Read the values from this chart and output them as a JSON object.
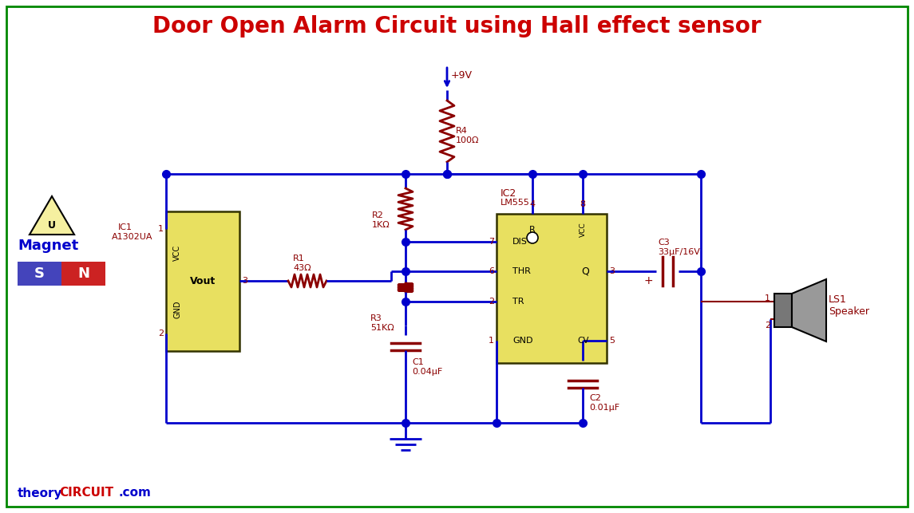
{
  "title": "Door Open Alarm Circuit using Hall effect sensor",
  "title_color": "#CC0000",
  "bg_color": "#FFFFFF",
  "wire_color": "#0000CC",
  "label_color": "#8B0000",
  "border_color": "#008800",
  "R1": "R1\n43Ω",
  "R2": "R2\n1KΩ",
  "R3": "R3\n51KΩ",
  "R4": "R4\n100Ω",
  "C1": "C1\n0.04μF",
  "C2": "C2\n0.01μF",
  "C3": "C3\n33μF/16V",
  "supply": "+9V",
  "ic1_name": "IC1\nA1302UA",
  "ic2_name1": "IC2",
  "ic2_name2": "LM555",
  "ls1": "LS1\nSpeaker"
}
